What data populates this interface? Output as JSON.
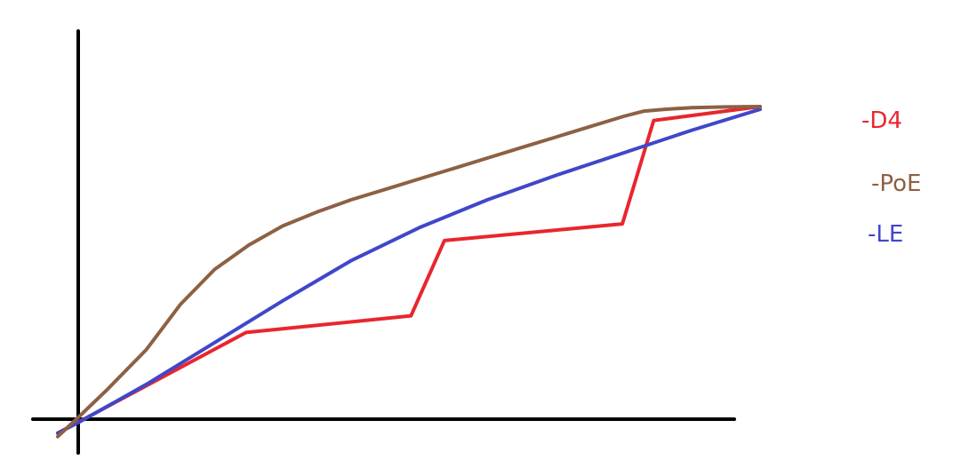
{
  "chart_data": {
    "type": "line",
    "title": "",
    "xlabel": "",
    "ylabel": "",
    "xlim": [
      0,
      100
    ],
    "ylim": [
      0,
      100
    ],
    "grid": false,
    "legend_placement": "right",
    "series": [
      {
        "name": "-D4",
        "color": "#e8262e",
        "x": [
          -3,
          24.6,
          48.8,
          53.7,
          79.8,
          84.4,
          100
        ],
        "y": [
          -4,
          24.9,
          29.7,
          51.3,
          56.1,
          85.8,
          89.8
        ]
      },
      {
        "name": "-PoE",
        "color": "#8c6144",
        "x": [
          -3,
          0,
          4,
          10,
          15,
          20,
          25,
          30,
          35,
          40,
          45,
          50,
          55,
          60,
          65,
          70,
          75,
          80,
          83,
          86,
          90,
          95,
          100
        ],
        "y": [
          -5,
          0.5,
          8,
          20,
          33,
          43,
          50,
          55.5,
          59.5,
          63,
          66,
          69,
          72,
          75,
          78,
          81,
          84,
          87,
          88.5,
          89,
          89.5,
          89.7,
          89.8
        ]
      },
      {
        "name": "-LE",
        "color": "#4047c8",
        "x": [
          -3,
          0,
          10,
          20,
          30,
          40,
          50,
          60,
          70,
          80,
          90,
          100
        ],
        "y": [
          -4,
          -1,
          10,
          22,
          34,
          45.5,
          55,
          63,
          70,
          76.5,
          83,
          89
        ]
      }
    ]
  }
}
